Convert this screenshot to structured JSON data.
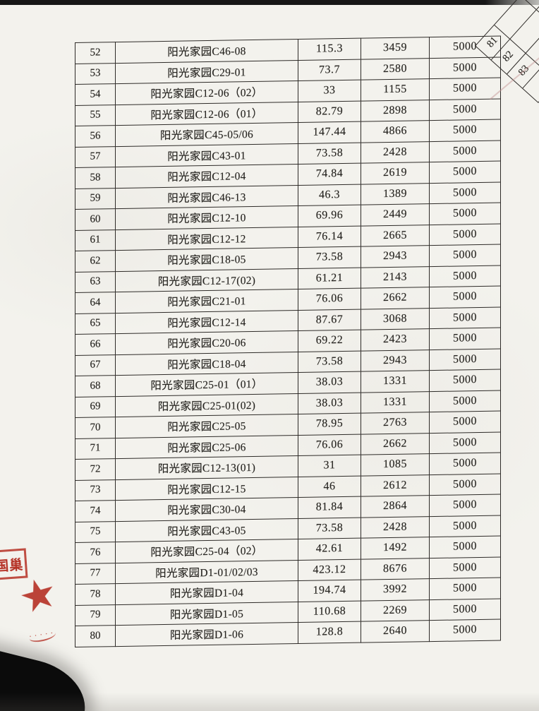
{
  "table": {
    "rows": [
      {
        "no": "52",
        "name": "阳光家园C46-08",
        "v1": "115.3",
        "v2": "3459",
        "v3": "5000"
      },
      {
        "no": "53",
        "name": "阳光家园C29-01",
        "v1": "73.7",
        "v2": "2580",
        "v3": "5000"
      },
      {
        "no": "54",
        "name": "阳光家园C12-06（02）",
        "v1": "33",
        "v2": "1155",
        "v3": "5000"
      },
      {
        "no": "55",
        "name": "阳光家园C12-06（01）",
        "v1": "82.79",
        "v2": "2898",
        "v3": "5000"
      },
      {
        "no": "56",
        "name": "阳光家园C45-05/06",
        "v1": "147.44",
        "v2": "4866",
        "v3": "5000"
      },
      {
        "no": "57",
        "name": "阳光家园C43-01",
        "v1": "73.58",
        "v2": "2428",
        "v3": "5000"
      },
      {
        "no": "58",
        "name": "阳光家园C12-04",
        "v1": "74.84",
        "v2": "2619",
        "v3": "5000"
      },
      {
        "no": "59",
        "name": "阳光家园C46-13",
        "v1": "46.3",
        "v2": "1389",
        "v3": "5000"
      },
      {
        "no": "60",
        "name": "阳光家园C12-10",
        "v1": "69.96",
        "v2": "2449",
        "v3": "5000"
      },
      {
        "no": "61",
        "name": "阳光家园C12-12",
        "v1": "76.14",
        "v2": "2665",
        "v3": "5000"
      },
      {
        "no": "62",
        "name": "阳光家园C18-05",
        "v1": "73.58",
        "v2": "2943",
        "v3": "5000"
      },
      {
        "no": "63",
        "name": "阳光家园C12-17(02)",
        "v1": "61.21",
        "v2": "2143",
        "v3": "5000"
      },
      {
        "no": "64",
        "name": "阳光家园C21-01",
        "v1": "76.06",
        "v2": "2662",
        "v3": "5000"
      },
      {
        "no": "65",
        "name": "阳光家园C12-14",
        "v1": "87.67",
        "v2": "3068",
        "v3": "5000"
      },
      {
        "no": "66",
        "name": "阳光家园C20-06",
        "v1": "69.22",
        "v2": "2423",
        "v3": "5000"
      },
      {
        "no": "67",
        "name": "阳光家园C18-04",
        "v1": "73.58",
        "v2": "2943",
        "v3": "5000"
      },
      {
        "no": "68",
        "name": "阳光家园C25-01（01）",
        "v1": "38.03",
        "v2": "1331",
        "v3": "5000"
      },
      {
        "no": "69",
        "name": "阳光家园C25-01(02)",
        "v1": "38.03",
        "v2": "1331",
        "v3": "5000"
      },
      {
        "no": "70",
        "name": "阳光家园C25-05",
        "v1": "78.95",
        "v2": "2763",
        "v3": "5000"
      },
      {
        "no": "71",
        "name": "阳光家园C25-06",
        "v1": "76.06",
        "v2": "2662",
        "v3": "5000"
      },
      {
        "no": "72",
        "name": "阳光家园C12-13(01)",
        "v1": "31",
        "v2": "1085",
        "v3": "5000"
      },
      {
        "no": "73",
        "name": "阳光家园C12-15",
        "v1": "46",
        "v2": "2612",
        "v3": "5000"
      },
      {
        "no": "74",
        "name": "阳光家园C30-04",
        "v1": "81.84",
        "v2": "2864",
        "v3": "5000"
      },
      {
        "no": "75",
        "name": "阳光家园C43-05",
        "v1": "73.58",
        "v2": "2428",
        "v3": "5000"
      },
      {
        "no": "76",
        "name": "阳光家园C25-04（02）",
        "v1": "42.61",
        "v2": "1492",
        "v3": "5000"
      },
      {
        "no": "77",
        "name": "阳光家园D1-01/02/03",
        "v1": "423.12",
        "v2": "8676",
        "v3": "5000"
      },
      {
        "no": "78",
        "name": "阳光家园D1-04",
        "v1": "194.74",
        "v2": "3992",
        "v3": "5000"
      },
      {
        "no": "79",
        "name": "阳光家园D1-05",
        "v1": "110.68",
        "v2": "2269",
        "v3": "5000"
      },
      {
        "no": "80",
        "name": "阳光家园D1-06",
        "v1": "128.8",
        "v2": "2640",
        "v3": "5000"
      }
    ]
  },
  "next_page": {
    "cells": [
      "81",
      "82",
      "83"
    ]
  },
  "stamp": {
    "partial_text": "国巢",
    "star": "★",
    "script_text": "·····"
  },
  "colors": {
    "stamp_red": "#b53125",
    "ink": "#25231f",
    "paper": "#f3f2ed",
    "table_line": "#2e2b28"
  }
}
